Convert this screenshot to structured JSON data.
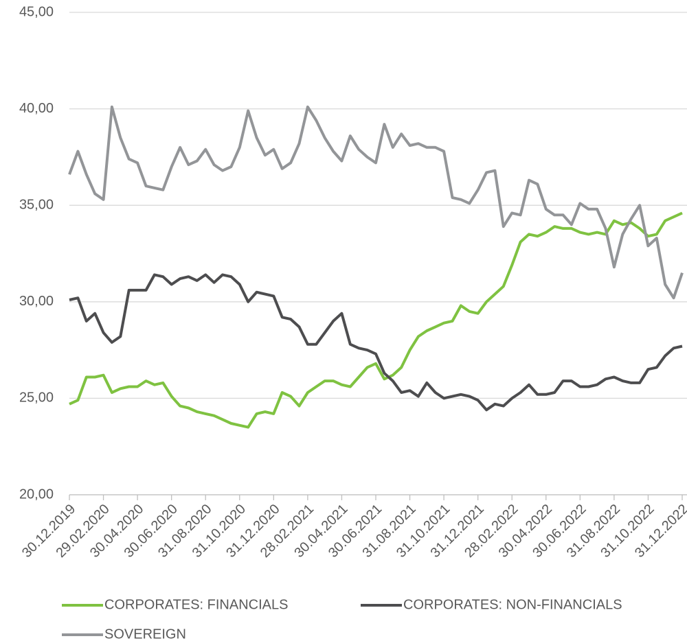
{
  "chart_data": {
    "type": "line",
    "categories": [
      "30.12.2019",
      null,
      null,
      null,
      "29.02.2020",
      null,
      null,
      null,
      "30.04.2020",
      null,
      null,
      null,
      "30.06.2020",
      null,
      null,
      null,
      "31.08.2020",
      null,
      null,
      null,
      "31.10.2020",
      null,
      null,
      null,
      "31.12.2020",
      null,
      null,
      null,
      "28.02.2021",
      null,
      null,
      null,
      "30.04.2021",
      null,
      null,
      null,
      "30.06.2021",
      null,
      null,
      null,
      "31.08.2021",
      null,
      null,
      null,
      "31.10.2021",
      null,
      null,
      null,
      "31.12.2021",
      null,
      null,
      null,
      "28.02.2022",
      null,
      null,
      null,
      "30.04.2022",
      null,
      null,
      null,
      "30.06.2022",
      null,
      null,
      null,
      "31.08.2022",
      null,
      null,
      null,
      "31.10.2022",
      null,
      null,
      null,
      "31.12.2022"
    ],
    "series": [
      {
        "name": "CORPORATES: FINANCIALS",
        "color": "#7fc241",
        "values": [
          24.7,
          24.9,
          26.1,
          26.1,
          26.2,
          25.3,
          25.5,
          25.6,
          25.6,
          25.9,
          25.7,
          25.8,
          25.1,
          24.6,
          24.5,
          24.3,
          24.2,
          24.1,
          23.9,
          23.7,
          23.6,
          23.5,
          24.2,
          24.3,
          24.2,
          25.3,
          25.1,
          24.6,
          25.3,
          25.6,
          25.9,
          25.9,
          25.7,
          25.6,
          26.1,
          26.6,
          26.8,
          26.0,
          26.2,
          26.6,
          27.5,
          28.2,
          28.5,
          28.7,
          28.9,
          29.0,
          29.8,
          29.5,
          29.4,
          30.0,
          30.4,
          30.8,
          31.9,
          33.1,
          33.5,
          33.4,
          33.6,
          33.9,
          33.8,
          33.8,
          33.6,
          33.5,
          33.6,
          33.5,
          34.2,
          34.0,
          34.1,
          33.8,
          33.4,
          33.5,
          34.2,
          34.4,
          34.6
        ]
      },
      {
        "name": "CORPORATES: NON-FINANCIALS",
        "color": "#4d4d4f",
        "values": [
          30.1,
          30.2,
          29.0,
          29.4,
          28.4,
          27.9,
          28.2,
          30.6,
          30.6,
          30.6,
          31.4,
          31.3,
          30.9,
          31.2,
          31.3,
          31.1,
          31.4,
          31.0,
          31.4,
          31.3,
          30.9,
          30.0,
          30.5,
          30.4,
          30.3,
          29.2,
          29.1,
          28.7,
          27.8,
          27.8,
          28.4,
          29.0,
          29.4,
          27.8,
          27.6,
          27.5,
          27.3,
          26.3,
          25.9,
          25.3,
          25.4,
          25.1,
          25.8,
          25.3,
          25.0,
          25.1,
          25.2,
          25.1,
          24.9,
          24.4,
          24.7,
          24.6,
          25.0,
          25.3,
          25.7,
          25.2,
          25.2,
          25.3,
          25.9,
          25.9,
          25.6,
          25.6,
          25.7,
          26.0,
          26.1,
          25.9,
          25.8,
          25.8,
          26.5,
          26.6,
          27.2,
          27.6,
          27.7
        ]
      },
      {
        "name": "SOVEREIGN",
        "color": "#939598",
        "values": [
          36.6,
          37.8,
          36.6,
          35.6,
          35.3,
          40.1,
          38.5,
          37.4,
          37.2,
          36.0,
          35.9,
          35.8,
          37.0,
          38.0,
          37.1,
          37.3,
          37.9,
          37.1,
          36.8,
          37.0,
          38.0,
          39.9,
          38.5,
          37.6,
          37.9,
          36.9,
          37.2,
          38.2,
          40.1,
          39.4,
          38.5,
          37.8,
          37.3,
          38.6,
          37.9,
          37.5,
          37.2,
          39.2,
          38.0,
          38.7,
          38.1,
          38.2,
          38.0,
          38.0,
          37.8,
          35.4,
          35.3,
          35.1,
          35.8,
          36.7,
          36.8,
          33.9,
          34.6,
          34.5,
          36.3,
          36.1,
          34.8,
          34.5,
          34.5,
          34.0,
          35.1,
          34.8,
          34.8,
          33.8,
          31.8,
          33.5,
          34.3,
          35.0,
          32.9,
          33.3,
          30.9,
          30.2,
          31.5
        ]
      }
    ],
    "ylim": [
      20,
      45
    ],
    "yticks": [
      {
        "value": 20,
        "label": "20,00"
      },
      {
        "value": 25,
        "label": "25,00"
      },
      {
        "value": 30,
        "label": "30,00"
      },
      {
        "value": 35,
        "label": "35,00"
      },
      {
        "value": 40,
        "label": "40,00"
      },
      {
        "value": 45,
        "label": "45,00"
      }
    ],
    "grid": true
  }
}
